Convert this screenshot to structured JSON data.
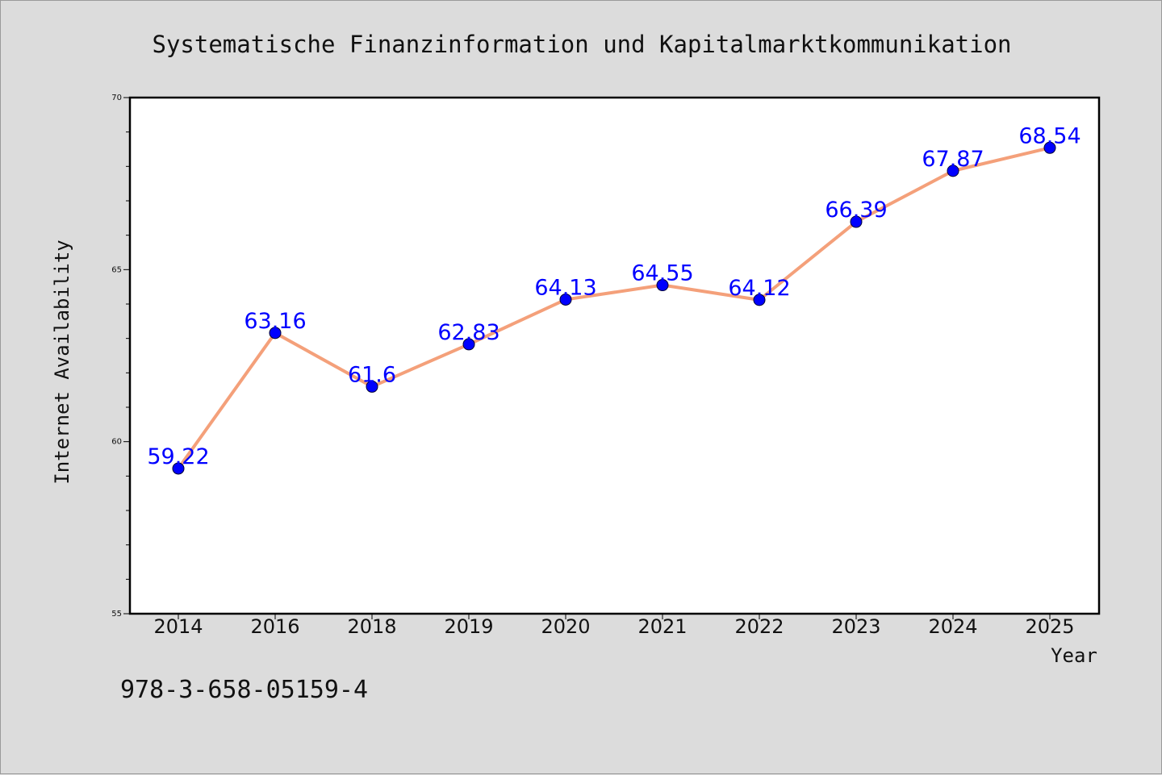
{
  "chart_data": {
    "type": "line",
    "title": "Systematische Finanzinformation und Kapitalmarktkommunikation",
    "xlabel": "Year",
    "ylabel": "Internet Availability",
    "categories": [
      "2014",
      "2016",
      "2018",
      "2019",
      "2020",
      "2021",
      "2022",
      "2023",
      "2024",
      "2025"
    ],
    "series": [
      {
        "values": [
          59.22,
          63.16,
          61.6,
          62.83,
          64.13,
          64.55,
          64.12,
          66.39,
          67.87,
          68.54
        ],
        "labels": [
          "59.22",
          "63.16",
          "61.6",
          "62.83",
          "64.13",
          "64.55",
          "64.12",
          "66.39",
          "67.87",
          "68.54"
        ],
        "line_color": "#f4a07a",
        "marker_color": "#0000ff"
      }
    ],
    "ylim": [
      55,
      70
    ],
    "yticks": [
      "55",
      "60",
      "65",
      "70"
    ],
    "grid": false,
    "legend": "none",
    "plot_background": "#ffffff",
    "figure_background": "#dcdcdc"
  },
  "footer": {
    "isbn": "978-3-658-05159-4"
  }
}
